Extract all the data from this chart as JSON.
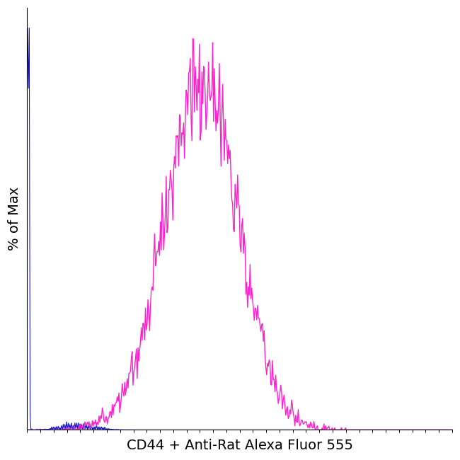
{
  "title": "",
  "xlabel": "CD44 + Anti-Rat Alexa Fluor 555",
  "ylabel": "% of Max",
  "background_color": "#ffffff",
  "blue_color": "#0000dd",
  "pink_color": "#ff22cc",
  "xlabel_fontsize": 14,
  "ylabel_fontsize": 14,
  "xlim": [
    0,
    1024
  ],
  "ylim": [
    0,
    1.05
  ]
}
